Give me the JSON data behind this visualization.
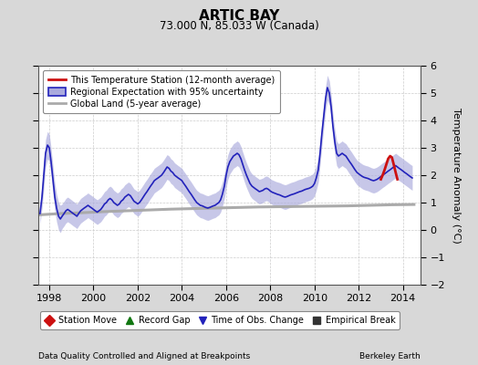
{
  "title": "ARTIC BAY",
  "subtitle": "73.000 N, 85.033 W (Canada)",
  "ylabel": "Temperature Anomaly (°C)",
  "footer_left": "Data Quality Controlled and Aligned at Breakpoints",
  "footer_right": "Berkeley Earth",
  "xlim": [
    1997.5,
    2014.8
  ],
  "ylim": [
    -2,
    6
  ],
  "yticks": [
    -2,
    -1,
    0,
    1,
    2,
    3,
    4,
    5,
    6
  ],
  "xticks": [
    1998,
    2000,
    2002,
    2004,
    2006,
    2008,
    2010,
    2012,
    2014
  ],
  "bg_color": "#d8d8d8",
  "plot_bg_color": "#ffffff",
  "blue_line_color": "#2222bb",
  "blue_fill_color": "#aaaadd",
  "red_line_color": "#cc1111",
  "gray_line_color": "#aaaaaa",
  "legend_items": [
    {
      "label": "This Temperature Station (12-month average)",
      "color": "#cc1111",
      "lw": 2
    },
    {
      "label": "Regional Expectation with 95% uncertainty",
      "color": "#2222bb",
      "lw": 2
    },
    {
      "label": "Global Land (5-year average)",
      "color": "#aaaaaa",
      "lw": 2
    }
  ],
  "marker_legend": [
    {
      "label": "Station Move",
      "color": "#cc1111",
      "marker": "D"
    },
    {
      "label": "Record Gap",
      "color": "#117711",
      "marker": "^"
    },
    {
      "label": "Time of Obs. Change",
      "color": "#2222bb",
      "marker": "v"
    },
    {
      "label": "Empirical Break",
      "color": "#333333",
      "marker": "s"
    }
  ],
  "regional_x": [
    1997.58,
    1997.67,
    1997.75,
    1997.83,
    1997.92,
    1998.0,
    1998.08,
    1998.17,
    1998.25,
    1998.33,
    1998.42,
    1998.5,
    1998.58,
    1998.67,
    1998.75,
    1998.83,
    1998.92,
    1999.0,
    1999.08,
    1999.17,
    1999.25,
    1999.33,
    1999.42,
    1999.5,
    1999.58,
    1999.67,
    1999.75,
    1999.83,
    1999.92,
    2000.0,
    2000.08,
    2000.17,
    2000.25,
    2000.33,
    2000.42,
    2000.5,
    2000.58,
    2000.67,
    2000.75,
    2000.83,
    2000.92,
    2001.0,
    2001.08,
    2001.17,
    2001.25,
    2001.33,
    2001.42,
    2001.5,
    2001.58,
    2001.67,
    2001.75,
    2001.83,
    2001.92,
    2002.0,
    2002.08,
    2002.17,
    2002.25,
    2002.33,
    2002.42,
    2002.5,
    2002.58,
    2002.67,
    2002.75,
    2002.83,
    2002.92,
    2003.0,
    2003.08,
    2003.17,
    2003.25,
    2003.33,
    2003.42,
    2003.5,
    2003.58,
    2003.67,
    2003.75,
    2003.83,
    2003.92,
    2004.0,
    2004.08,
    2004.17,
    2004.25,
    2004.33,
    2004.42,
    2004.5,
    2004.58,
    2004.67,
    2004.75,
    2004.83,
    2004.92,
    2005.0,
    2005.08,
    2005.17,
    2005.25,
    2005.33,
    2005.42,
    2005.5,
    2005.58,
    2005.67,
    2005.75,
    2005.83,
    2005.92,
    2006.0,
    2006.08,
    2006.17,
    2006.25,
    2006.33,
    2006.42,
    2006.5,
    2006.58,
    2006.67,
    2006.75,
    2006.83,
    2006.92,
    2007.0,
    2007.08,
    2007.17,
    2007.25,
    2007.33,
    2007.42,
    2007.5,
    2007.58,
    2007.67,
    2007.75,
    2007.83,
    2007.92,
    2008.0,
    2008.08,
    2008.17,
    2008.25,
    2008.33,
    2008.42,
    2008.5,
    2008.58,
    2008.67,
    2008.75,
    2008.83,
    2008.92,
    2009.0,
    2009.08,
    2009.17,
    2009.25,
    2009.33,
    2009.42,
    2009.5,
    2009.58,
    2009.67,
    2009.75,
    2009.83,
    2009.92,
    2010.0,
    2010.08,
    2010.17,
    2010.25,
    2010.33,
    2010.42,
    2010.5,
    2010.58,
    2010.67,
    2010.75,
    2010.83,
    2010.92,
    2011.0,
    2011.08,
    2011.17,
    2011.25,
    2011.33,
    2011.42,
    2011.5,
    2011.58,
    2011.67,
    2011.75,
    2011.83,
    2011.92,
    2012.0,
    2012.08,
    2012.17,
    2012.25,
    2012.33,
    2012.42,
    2012.5,
    2012.58,
    2012.67,
    2012.75,
    2012.83,
    2012.92,
    2013.0,
    2013.08,
    2013.17,
    2013.25,
    2013.33,
    2013.42,
    2013.5,
    2013.58,
    2013.67,
    2013.75,
    2013.83,
    2013.92,
    2014.0,
    2014.08,
    2014.17,
    2014.25,
    2014.33,
    2014.42
  ],
  "regional_y": [
    0.6,
    1.2,
    2.0,
    2.8,
    3.1,
    3.0,
    2.5,
    1.8,
    1.2,
    0.8,
    0.5,
    0.4,
    0.5,
    0.6,
    0.7,
    0.75,
    0.7,
    0.65,
    0.6,
    0.55,
    0.5,
    0.6,
    0.7,
    0.75,
    0.8,
    0.85,
    0.9,
    0.85,
    0.8,
    0.75,
    0.7,
    0.65,
    0.7,
    0.75,
    0.85,
    0.95,
    1.0,
    1.1,
    1.15,
    1.1,
    1.0,
    0.95,
    0.9,
    0.95,
    1.05,
    1.1,
    1.2,
    1.25,
    1.3,
    1.25,
    1.15,
    1.05,
    1.0,
    0.95,
    1.0,
    1.1,
    1.2,
    1.3,
    1.4,
    1.5,
    1.6,
    1.7,
    1.8,
    1.85,
    1.9,
    1.95,
    2.0,
    2.1,
    2.2,
    2.3,
    2.25,
    2.15,
    2.1,
    2.0,
    1.95,
    1.9,
    1.85,
    1.8,
    1.7,
    1.6,
    1.5,
    1.4,
    1.3,
    1.2,
    1.1,
    1.0,
    0.95,
    0.9,
    0.88,
    0.85,
    0.82,
    0.8,
    0.82,
    0.85,
    0.88,
    0.9,
    0.95,
    1.0,
    1.1,
    1.3,
    1.6,
    2.0,
    2.3,
    2.5,
    2.6,
    2.7,
    2.75,
    2.8,
    2.75,
    2.6,
    2.4,
    2.2,
    2.0,
    1.85,
    1.7,
    1.6,
    1.55,
    1.5,
    1.45,
    1.4,
    1.42,
    1.45,
    1.5,
    1.52,
    1.48,
    1.42,
    1.38,
    1.35,
    1.32,
    1.3,
    1.28,
    1.25,
    1.22,
    1.2,
    1.22,
    1.25,
    1.28,
    1.3,
    1.32,
    1.35,
    1.38,
    1.4,
    1.42,
    1.45,
    1.48,
    1.5,
    1.52,
    1.55,
    1.6,
    1.7,
    1.9,
    2.2,
    2.8,
    3.5,
    4.2,
    4.8,
    5.2,
    5.0,
    4.5,
    3.8,
    3.2,
    2.8,
    2.7,
    2.75,
    2.8,
    2.75,
    2.7,
    2.6,
    2.5,
    2.4,
    2.3,
    2.2,
    2.1,
    2.05,
    2.0,
    1.95,
    1.92,
    1.9,
    1.88,
    1.85,
    1.82,
    1.8,
    1.82,
    1.85,
    1.9,
    1.95,
    2.0,
    2.05,
    2.1,
    2.15,
    2.2,
    2.25,
    2.3,
    2.35,
    2.3,
    2.25,
    2.2,
    2.15,
    2.1,
    2.05,
    2.0,
    1.95,
    1.9
  ],
  "regional_upper": [
    1.0,
    1.6,
    2.5,
    3.3,
    3.6,
    3.5,
    3.0,
    2.3,
    1.7,
    1.3,
    1.0,
    0.9,
    0.95,
    1.05,
    1.15,
    1.2,
    1.15,
    1.1,
    1.05,
    1.0,
    0.95,
    1.05,
    1.15,
    1.2,
    1.25,
    1.3,
    1.35,
    1.3,
    1.25,
    1.2,
    1.15,
    1.1,
    1.15,
    1.2,
    1.3,
    1.4,
    1.45,
    1.55,
    1.6,
    1.55,
    1.45,
    1.4,
    1.35,
    1.4,
    1.5,
    1.55,
    1.65,
    1.7,
    1.75,
    1.7,
    1.6,
    1.5,
    1.45,
    1.4,
    1.45,
    1.55,
    1.65,
    1.75,
    1.85,
    1.95,
    2.05,
    2.15,
    2.25,
    2.3,
    2.35,
    2.4,
    2.45,
    2.55,
    2.65,
    2.75,
    2.7,
    2.6,
    2.55,
    2.45,
    2.4,
    2.35,
    2.3,
    2.25,
    2.15,
    2.05,
    1.95,
    1.85,
    1.75,
    1.65,
    1.55,
    1.45,
    1.4,
    1.35,
    1.33,
    1.3,
    1.27,
    1.25,
    1.27,
    1.3,
    1.33,
    1.35,
    1.4,
    1.45,
    1.55,
    1.75,
    2.05,
    2.45,
    2.75,
    2.95,
    3.05,
    3.15,
    3.2,
    3.25,
    3.2,
    3.05,
    2.85,
    2.65,
    2.45,
    2.3,
    2.15,
    2.05,
    2.0,
    1.95,
    1.9,
    1.85,
    1.87,
    1.9,
    1.95,
    1.97,
    1.93,
    1.87,
    1.83,
    1.8,
    1.77,
    1.75,
    1.73,
    1.7,
    1.67,
    1.65,
    1.67,
    1.7,
    1.73,
    1.75,
    1.77,
    1.8,
    1.83,
    1.85,
    1.87,
    1.9,
    1.93,
    1.95,
    1.97,
    2.0,
    2.05,
    2.15,
    2.35,
    2.65,
    3.25,
    3.95,
    4.65,
    5.25,
    5.65,
    5.45,
    4.95,
    4.25,
    3.65,
    3.25,
    3.15,
    3.2,
    3.25,
    3.2,
    3.15,
    3.05,
    2.95,
    2.85,
    2.75,
    2.65,
    2.55,
    2.5,
    2.45,
    2.4,
    2.37,
    2.35,
    2.33,
    2.3,
    2.27,
    2.25,
    2.27,
    2.3,
    2.35,
    2.4,
    2.45,
    2.5,
    2.55,
    2.6,
    2.65,
    2.7,
    2.75,
    2.8,
    2.75,
    2.7,
    2.65,
    2.6,
    2.55,
    2.5,
    2.45,
    2.4,
    2.35
  ],
  "regional_lower": [
    0.2,
    0.8,
    1.5,
    2.3,
    2.6,
    2.5,
    2.0,
    1.3,
    0.7,
    0.3,
    0.0,
    -0.1,
    0.05,
    0.15,
    0.25,
    0.3,
    0.25,
    0.2,
    0.15,
    0.1,
    0.05,
    0.15,
    0.25,
    0.3,
    0.35,
    0.4,
    0.45,
    0.4,
    0.35,
    0.3,
    0.25,
    0.2,
    0.25,
    0.3,
    0.4,
    0.5,
    0.55,
    0.65,
    0.7,
    0.65,
    0.55,
    0.5,
    0.45,
    0.5,
    0.6,
    0.65,
    0.75,
    0.8,
    0.85,
    0.8,
    0.7,
    0.6,
    0.55,
    0.5,
    0.55,
    0.65,
    0.75,
    0.85,
    0.95,
    1.05,
    1.15,
    1.25,
    1.35,
    1.4,
    1.45,
    1.5,
    1.55,
    1.65,
    1.75,
    1.85,
    1.8,
    1.7,
    1.65,
    1.55,
    1.5,
    1.45,
    1.4,
    1.35,
    1.25,
    1.15,
    1.05,
    0.95,
    0.85,
    0.75,
    0.65,
    0.55,
    0.5,
    0.45,
    0.43,
    0.4,
    0.37,
    0.35,
    0.37,
    0.4,
    0.43,
    0.45,
    0.5,
    0.55,
    0.65,
    0.85,
    1.15,
    1.55,
    1.85,
    2.05,
    2.15,
    2.25,
    2.3,
    2.35,
    2.3,
    2.15,
    1.95,
    1.75,
    1.55,
    1.4,
    1.25,
    1.15,
    1.1,
    1.05,
    1.0,
    0.95,
    0.97,
    1.0,
    1.05,
    1.07,
    1.03,
    0.97,
    0.93,
    0.9,
    0.87,
    0.85,
    0.83,
    0.8,
    0.77,
    0.75,
    0.77,
    0.8,
    0.83,
    0.85,
    0.87,
    0.9,
    0.93,
    0.95,
    0.97,
    1.0,
    1.03,
    1.05,
    1.07,
    1.1,
    1.15,
    1.25,
    1.45,
    1.75,
    2.35,
    3.05,
    3.75,
    4.35,
    4.75,
    4.55,
    4.05,
    3.35,
    2.75,
    2.35,
    2.25,
    2.3,
    2.35,
    2.3,
    2.25,
    2.15,
    2.05,
    1.95,
    1.85,
    1.75,
    1.65,
    1.6,
    1.55,
    1.5,
    1.47,
    1.45,
    1.43,
    1.4,
    1.37,
    1.35,
    1.37,
    1.4,
    1.45,
    1.5,
    1.55,
    1.6,
    1.65,
    1.7,
    1.75,
    1.8,
    1.85,
    1.9,
    1.85,
    1.8,
    1.75,
    1.7,
    1.65,
    1.6,
    1.55,
    1.5,
    1.45
  ],
  "station_x": [
    2013.0,
    2013.08,
    2013.17,
    2013.25,
    2013.33,
    2013.42,
    2013.5,
    2013.58,
    2013.67,
    2013.75
  ],
  "station_y": [
    1.85,
    2.0,
    2.2,
    2.4,
    2.6,
    2.7,
    2.65,
    2.4,
    2.1,
    1.85
  ],
  "global_x": [
    1997.5,
    1998.5,
    1999.5,
    2000.5,
    2001.5,
    2002.5,
    2003.5,
    2004.5,
    2005.5,
    2006.5,
    2007.5,
    2008.5,
    2009.5,
    2010.5,
    2011.5,
    2012.5,
    2013.5,
    2014.5
  ],
  "global_y": [
    0.55,
    0.6,
    0.63,
    0.67,
    0.7,
    0.73,
    0.76,
    0.78,
    0.8,
    0.82,
    0.84,
    0.85,
    0.86,
    0.87,
    0.88,
    0.9,
    0.92,
    0.93
  ]
}
